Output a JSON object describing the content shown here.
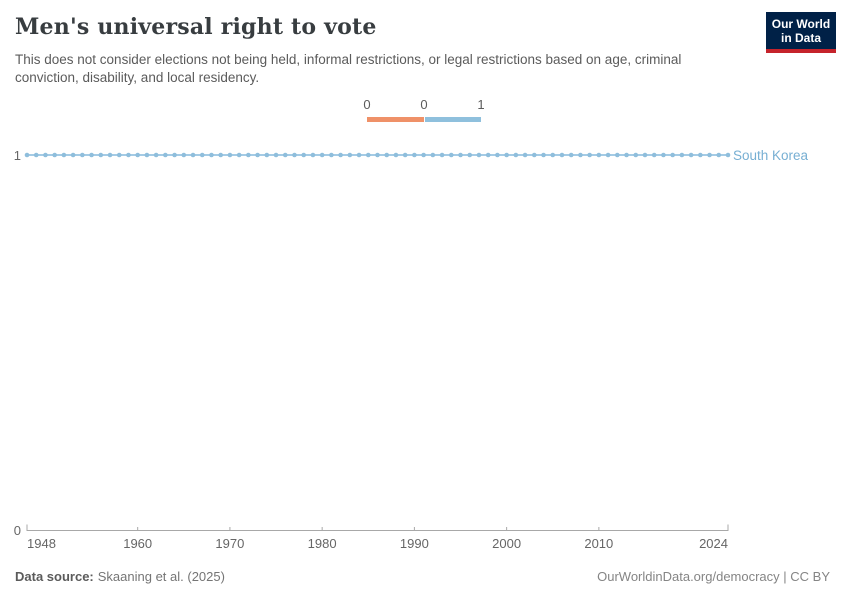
{
  "header": {
    "title": "Men's universal right to vote",
    "subtitle": "This does not consider elections not being held, informal restrictions, or legal restrictions based on age, criminal conviction, disability, and local residency.",
    "logo_line1": "Our World",
    "logo_line2": "in Data"
  },
  "legend": {
    "ticks": [
      "0",
      "0",
      "1"
    ],
    "segments": [
      {
        "label": "0",
        "color": "#ef9168"
      },
      {
        "label": "1",
        "color": "#8fc0dd"
      }
    ]
  },
  "colors": {
    "line": "#a4cbe5",
    "marker": "#8fbedc",
    "series_label": "#77afd3",
    "axis": "#a8a8a8",
    "logo_bg": "#002147",
    "logo_accent": "#c5232b",
    "legend_orange": "#ef9168",
    "legend_blue": "#8fc0dd"
  },
  "chart_data": {
    "type": "line",
    "title": "Men's universal right to vote",
    "xlabel": "",
    "ylabel": "",
    "xlim": [
      1948,
      2024
    ],
    "ylim": [
      0,
      1
    ],
    "grid": false,
    "legend_position": "top-center",
    "x_ticks": [
      1948,
      1960,
      1970,
      1980,
      1990,
      2000,
      2010,
      2024
    ],
    "x_tick_labels": [
      "1948",
      "1960",
      "1970",
      "1980",
      "1990",
      "2000",
      "2010",
      "2024"
    ],
    "y_ticks": [
      1,
      0
    ],
    "y_tick_labels": [
      "1",
      "0"
    ],
    "minor_tick_years": [
      1960,
      1970,
      1980,
      1990,
      2000,
      2010
    ],
    "x": [
      1948,
      1949,
      1950,
      1951,
      1952,
      1953,
      1954,
      1955,
      1956,
      1957,
      1958,
      1959,
      1960,
      1961,
      1962,
      1963,
      1964,
      1965,
      1966,
      1967,
      1968,
      1969,
      1970,
      1971,
      1972,
      1973,
      1974,
      1975,
      1976,
      1977,
      1978,
      1979,
      1980,
      1981,
      1982,
      1983,
      1984,
      1985,
      1986,
      1987,
      1988,
      1989,
      1990,
      1991,
      1992,
      1993,
      1994,
      1995,
      1996,
      1997,
      1998,
      1999,
      2000,
      2001,
      2002,
      2003,
      2004,
      2005,
      2006,
      2007,
      2008,
      2009,
      2010,
      2011,
      2012,
      2013,
      2014,
      2015,
      2016,
      2017,
      2018,
      2019,
      2020,
      2021,
      2022,
      2023,
      2024
    ],
    "series": [
      {
        "name": "South Korea",
        "values": [
          1,
          1,
          1,
          1,
          1,
          1,
          1,
          1,
          1,
          1,
          1,
          1,
          1,
          1,
          1,
          1,
          1,
          1,
          1,
          1,
          1,
          1,
          1,
          1,
          1,
          1,
          1,
          1,
          1,
          1,
          1,
          1,
          1,
          1,
          1,
          1,
          1,
          1,
          1,
          1,
          1,
          1,
          1,
          1,
          1,
          1,
          1,
          1,
          1,
          1,
          1,
          1,
          1,
          1,
          1,
          1,
          1,
          1,
          1,
          1,
          1,
          1,
          1,
          1,
          1,
          1,
          1,
          1,
          1,
          1,
          1,
          1,
          1,
          1,
          1,
          1,
          1
        ]
      }
    ]
  },
  "footer": {
    "data_source_label": "Data source:",
    "data_source_value": "Skaaning et al. (2025)",
    "origin": "OurWorldinData.org/democracy | CC BY"
  }
}
